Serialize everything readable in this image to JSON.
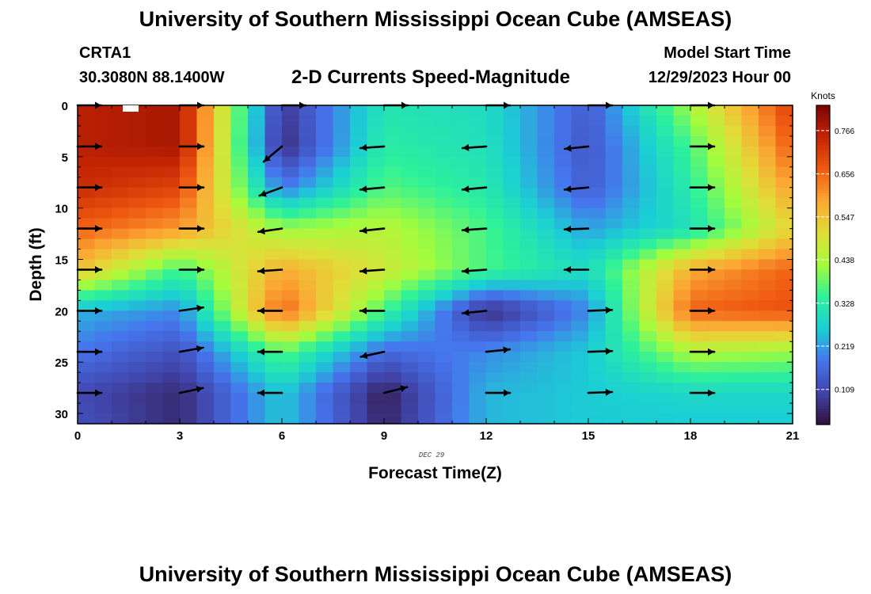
{
  "header": {
    "title": "University of Southern Mississippi Ocean Cube (AMSEAS)",
    "station": "CRTA1",
    "latlon": "30.3080N  88.1400W",
    "subtitle": "2-D Currents Speed-Magnitude",
    "model_start_label": "Model Start Time",
    "model_start_value": "12/29/2023 Hour 00"
  },
  "footer": {
    "title": "University of Southern Mississippi Ocean Cube (AMSEAS)"
  },
  "chart_data": {
    "type": "heatmap",
    "title": "2-D Currents Speed-Magnitude",
    "xlabel": "Forecast Time(Z)",
    "ylabel": "Depth (ft)",
    "date_label": "DEC 29",
    "xlim": [
      0,
      21
    ],
    "ylim": [
      31,
      0
    ],
    "x_ticks": [
      0,
      3,
      6,
      9,
      12,
      15,
      18,
      21
    ],
    "y_ticks": [
      0,
      5,
      10,
      15,
      20,
      25,
      30
    ],
    "colorbar": {
      "label": "Knots",
      "range": [
        0.02,
        0.83
      ],
      "ticks": [
        "0.766",
        "0.656",
        "0.547",
        "0.438",
        "0.328",
        "0.219",
        "0.109"
      ],
      "tick_values": [
        0.766,
        0.656,
        0.547,
        0.438,
        0.328,
        0.219,
        0.109
      ]
    },
    "speed_grid": {
      "units": "knots",
      "times": [
        0,
        3,
        6,
        9,
        12,
        15,
        18,
        21
      ],
      "depths": [
        0,
        4,
        8,
        12,
        16,
        20,
        24,
        28,
        31
      ],
      "values": [
        [
          0.76,
          0.78,
          0.08,
          0.31,
          0.29,
          0.14,
          0.43,
          0.71
        ],
        [
          0.76,
          0.78,
          0.06,
          0.33,
          0.3,
          0.13,
          0.36,
          0.67
        ],
        [
          0.74,
          0.7,
          0.18,
          0.37,
          0.32,
          0.14,
          0.33,
          0.6
        ],
        [
          0.66,
          0.6,
          0.42,
          0.45,
          0.36,
          0.22,
          0.3,
          0.52
        ],
        [
          0.55,
          0.35,
          0.58,
          0.48,
          0.36,
          0.29,
          0.58,
          0.66
        ],
        [
          0.24,
          0.2,
          0.66,
          0.36,
          0.06,
          0.2,
          0.66,
          0.68
        ],
        [
          0.18,
          0.12,
          0.38,
          0.16,
          0.2,
          0.26,
          0.44,
          0.42
        ],
        [
          0.11,
          0.06,
          0.26,
          0.04,
          0.24,
          0.26,
          0.28,
          0.28
        ],
        [
          0.12,
          0.06,
          0.26,
          0.05,
          0.24,
          0.26,
          0.26,
          0.26
        ]
      ]
    },
    "vectors": {
      "times": [
        0,
        3,
        6,
        9,
        12,
        15,
        18
      ],
      "depths": [
        0,
        4,
        8,
        12,
        16,
        20,
        24,
        28
      ],
      "dir_deg": [
        [
          0,
          0,
          0,
          0,
          0,
          0,
          0
        ],
        [
          0,
          0,
          140,
          176,
          176,
          174,
          0
        ],
        [
          0,
          0,
          160,
          175,
          175,
          175,
          0
        ],
        [
          0,
          0,
          172,
          174,
          176,
          178,
          0
        ],
        [
          0,
          0,
          176,
          176,
          176,
          180,
          0
        ],
        [
          0,
          -8,
          180,
          180,
          174,
          -2,
          0
        ],
        [
          0,
          -10,
          180,
          168,
          -6,
          -2,
          0
        ],
        [
          0,
          -12,
          180,
          -14,
          0,
          -2,
          0
        ]
      ]
    }
  }
}
